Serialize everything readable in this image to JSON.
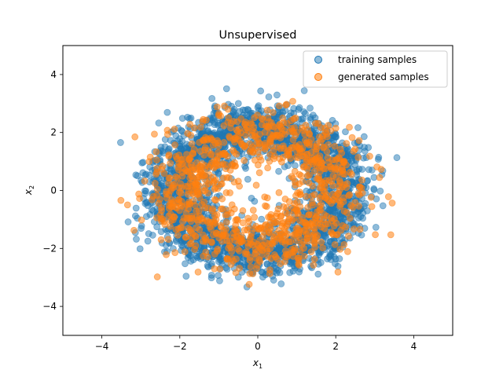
{
  "chart_data": {
    "type": "scatter",
    "title": "Unsupervised",
    "xlabel": "x",
    "xlabel_sub": "1",
    "ylabel": "x",
    "ylabel_sub": "2",
    "xlim": [
      -5,
      5
    ],
    "ylim": [
      -5,
      5
    ],
    "xticks": [
      -4,
      -2,
      0,
      2,
      4
    ],
    "yticks": [
      -4,
      -2,
      0,
      2,
      4
    ],
    "grid": false,
    "legend_position": "top-right",
    "series": [
      {
        "name": "training samples",
        "color": "#1f77b4",
        "opacity": 0.5,
        "distribution": "ring",
        "count": 2500,
        "ring_radius_mean": 2.2,
        "ring_radius_std": 0.45,
        "center": [
          0,
          0
        ]
      },
      {
        "name": "generated samples",
        "color": "#ff7f0e",
        "opacity": 0.55,
        "distribution": "ring",
        "count": 1000,
        "ring_radius_mean": 1.95,
        "ring_radius_std": 0.55,
        "center": [
          0,
          0
        ]
      }
    ]
  }
}
